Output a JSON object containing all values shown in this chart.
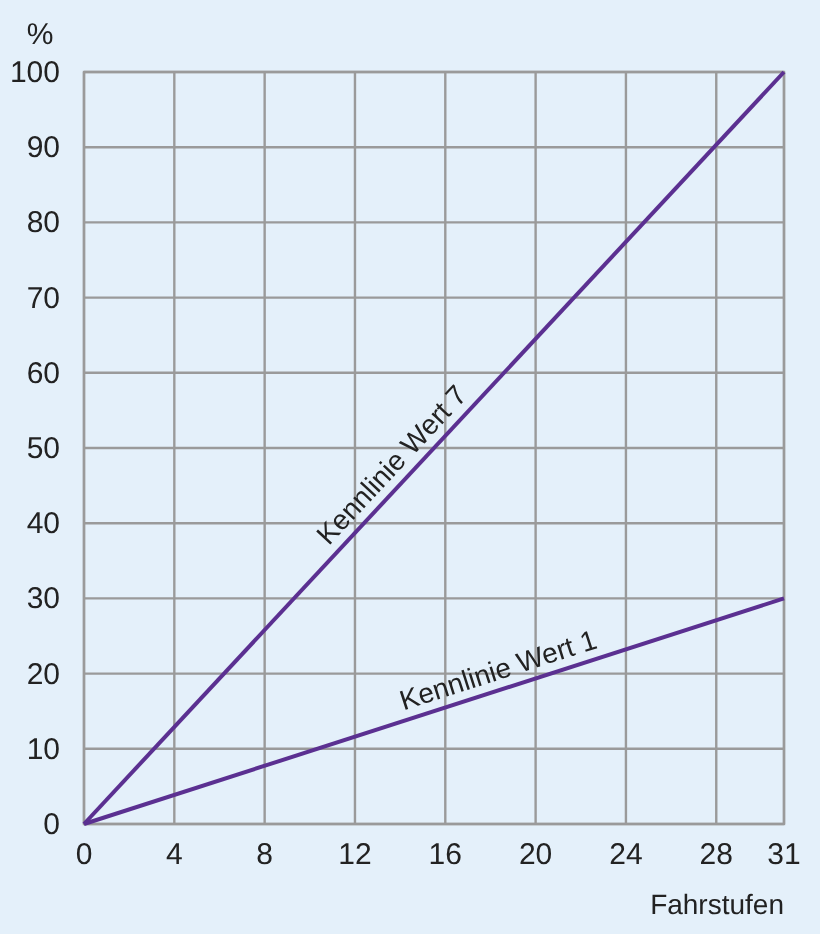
{
  "chart_data": {
    "type": "line",
    "xlabel": "Fahrstufen",
    "ylabel": "%",
    "x": [
      0,
      31
    ],
    "series": [
      {
        "name": "Kennlinie Wert 7",
        "color": "#5b3091",
        "values": [
          0,
          100
        ]
      },
      {
        "name": "Kennlinie Wert 1",
        "color": "#5b3091",
        "values": [
          0,
          30
        ]
      }
    ],
    "xlim": [
      0,
      31
    ],
    "xticks": [
      0,
      4,
      8,
      12,
      16,
      20,
      24,
      28,
      31
    ],
    "ylim": [
      0,
      100
    ],
    "yticks": [
      0,
      10,
      20,
      30,
      40,
      50,
      60,
      70,
      80,
      90,
      100
    ],
    "grid": true,
    "legend": false,
    "marker": "none",
    "line_style": "solid"
  }
}
